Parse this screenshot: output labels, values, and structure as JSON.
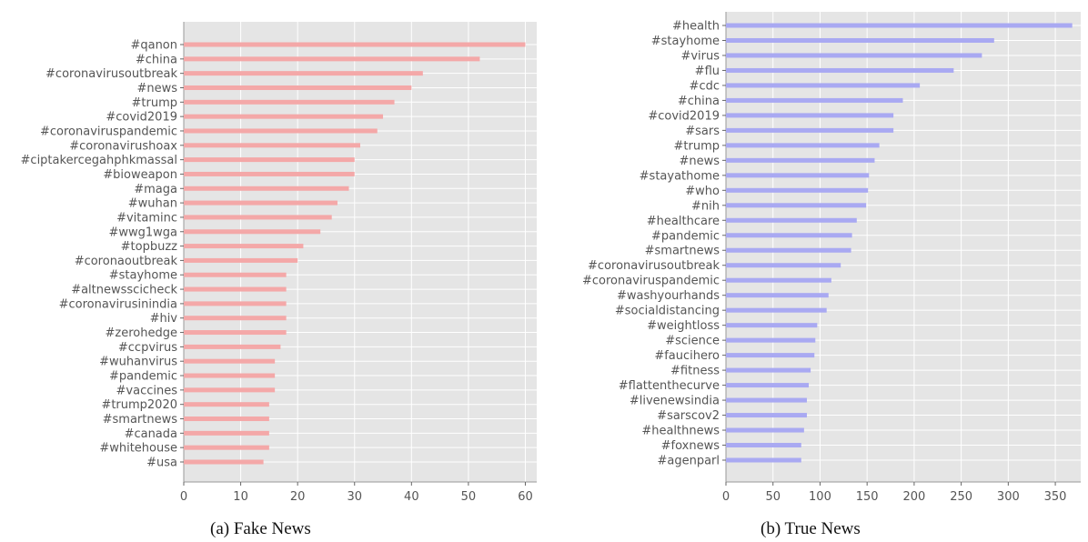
{
  "captions": {
    "a": "(a) Fake News",
    "b": "(b) True News"
  },
  "colors": {
    "panel_bg": "#e5e5e5",
    "grid": "#ffffff",
    "fake_bar": "#f4a8a8",
    "true_bar": "#a9a9f2",
    "text": "#555555"
  },
  "chart_data": [
    {
      "type": "bar",
      "orientation": "horizontal",
      "title": "",
      "xlabel": "",
      "ylabel": "",
      "xlim": [
        0,
        62
      ],
      "xticks": [
        0,
        10,
        20,
        30,
        40,
        50,
        60
      ],
      "grid": true,
      "categories": [
        "#qanon",
        "#china",
        "#coronavirusoutbreak",
        "#news",
        "#trump",
        "#covid2019",
        "#coronaviruspandemic",
        "#coronavirushoax",
        "#ciptakercegahphkmassal",
        "#bioweapon",
        "#maga",
        "#wuhan",
        "#vitaminc",
        "#wwg1wga",
        "#topbuzz",
        "#coronaoutbreak",
        "#stayhome",
        "#altnewsscicheck",
        "#coronavirusinindia",
        "#hiv",
        "#zerohedge",
        "#ccpvirus",
        "#wuhanvirus",
        "#pandemic",
        "#vaccines",
        "#trump2020",
        "#smartnews",
        "#canada",
        "#whitehouse",
        "#usa"
      ],
      "values": [
        60,
        52,
        42,
        40,
        37,
        35,
        34,
        31,
        30,
        30,
        29,
        27,
        26,
        24,
        21,
        20,
        18,
        18,
        18,
        18,
        18,
        17,
        16,
        16,
        16,
        15,
        15,
        15,
        15,
        14
      ]
    },
    {
      "type": "bar",
      "orientation": "horizontal",
      "title": "",
      "xlabel": "",
      "ylabel": "",
      "xlim": [
        0,
        377
      ],
      "xticks": [
        0,
        50,
        100,
        150,
        200,
        250,
        300,
        350
      ],
      "grid": true,
      "categories": [
        "#health",
        "#stayhome",
        "#virus",
        "#flu",
        "#cdc",
        "#china",
        "#covid2019",
        "#sars",
        "#trump",
        "#news",
        "#stayathome",
        "#who",
        "#nih",
        "#healthcare",
        "#pandemic",
        "#smartnews",
        "#coronavirusoutbreak",
        "#coronaviruspandemic",
        "#washyourhands",
        "#socialdistancing",
        "#weightloss",
        "#science",
        "#faucihero",
        "#fitness",
        "#flattenthecurve",
        "#livenewsindia",
        "#sarscov2",
        "#healthnews",
        "#foxnews",
        "#agenparl"
      ],
      "values": [
        368,
        285,
        272,
        242,
        206,
        188,
        178,
        178,
        163,
        158,
        152,
        151,
        149,
        139,
        134,
        133,
        122,
        112,
        109,
        107,
        97,
        95,
        94,
        90,
        88,
        86,
        86,
        83,
        80,
        80
      ]
    }
  ]
}
